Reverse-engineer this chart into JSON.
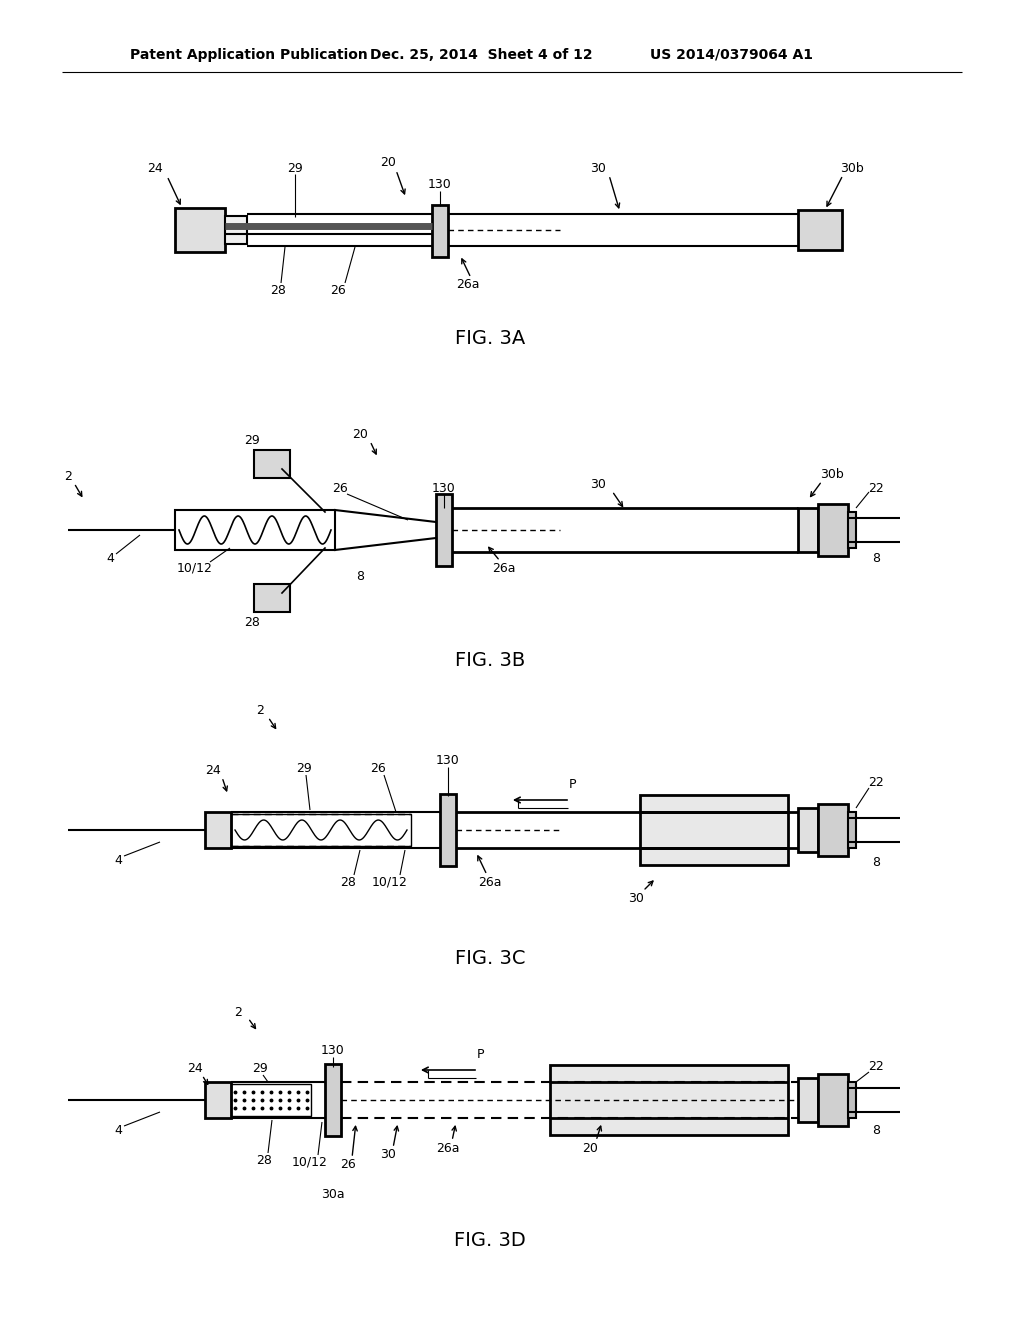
{
  "bg_color": "#ffffff",
  "header_text": "Patent Application Publication",
  "header_date": "Dec. 25, 2014  Sheet 4 of 12",
  "header_patent": "US 2014/0379064 A1",
  "line_color": "#000000"
}
